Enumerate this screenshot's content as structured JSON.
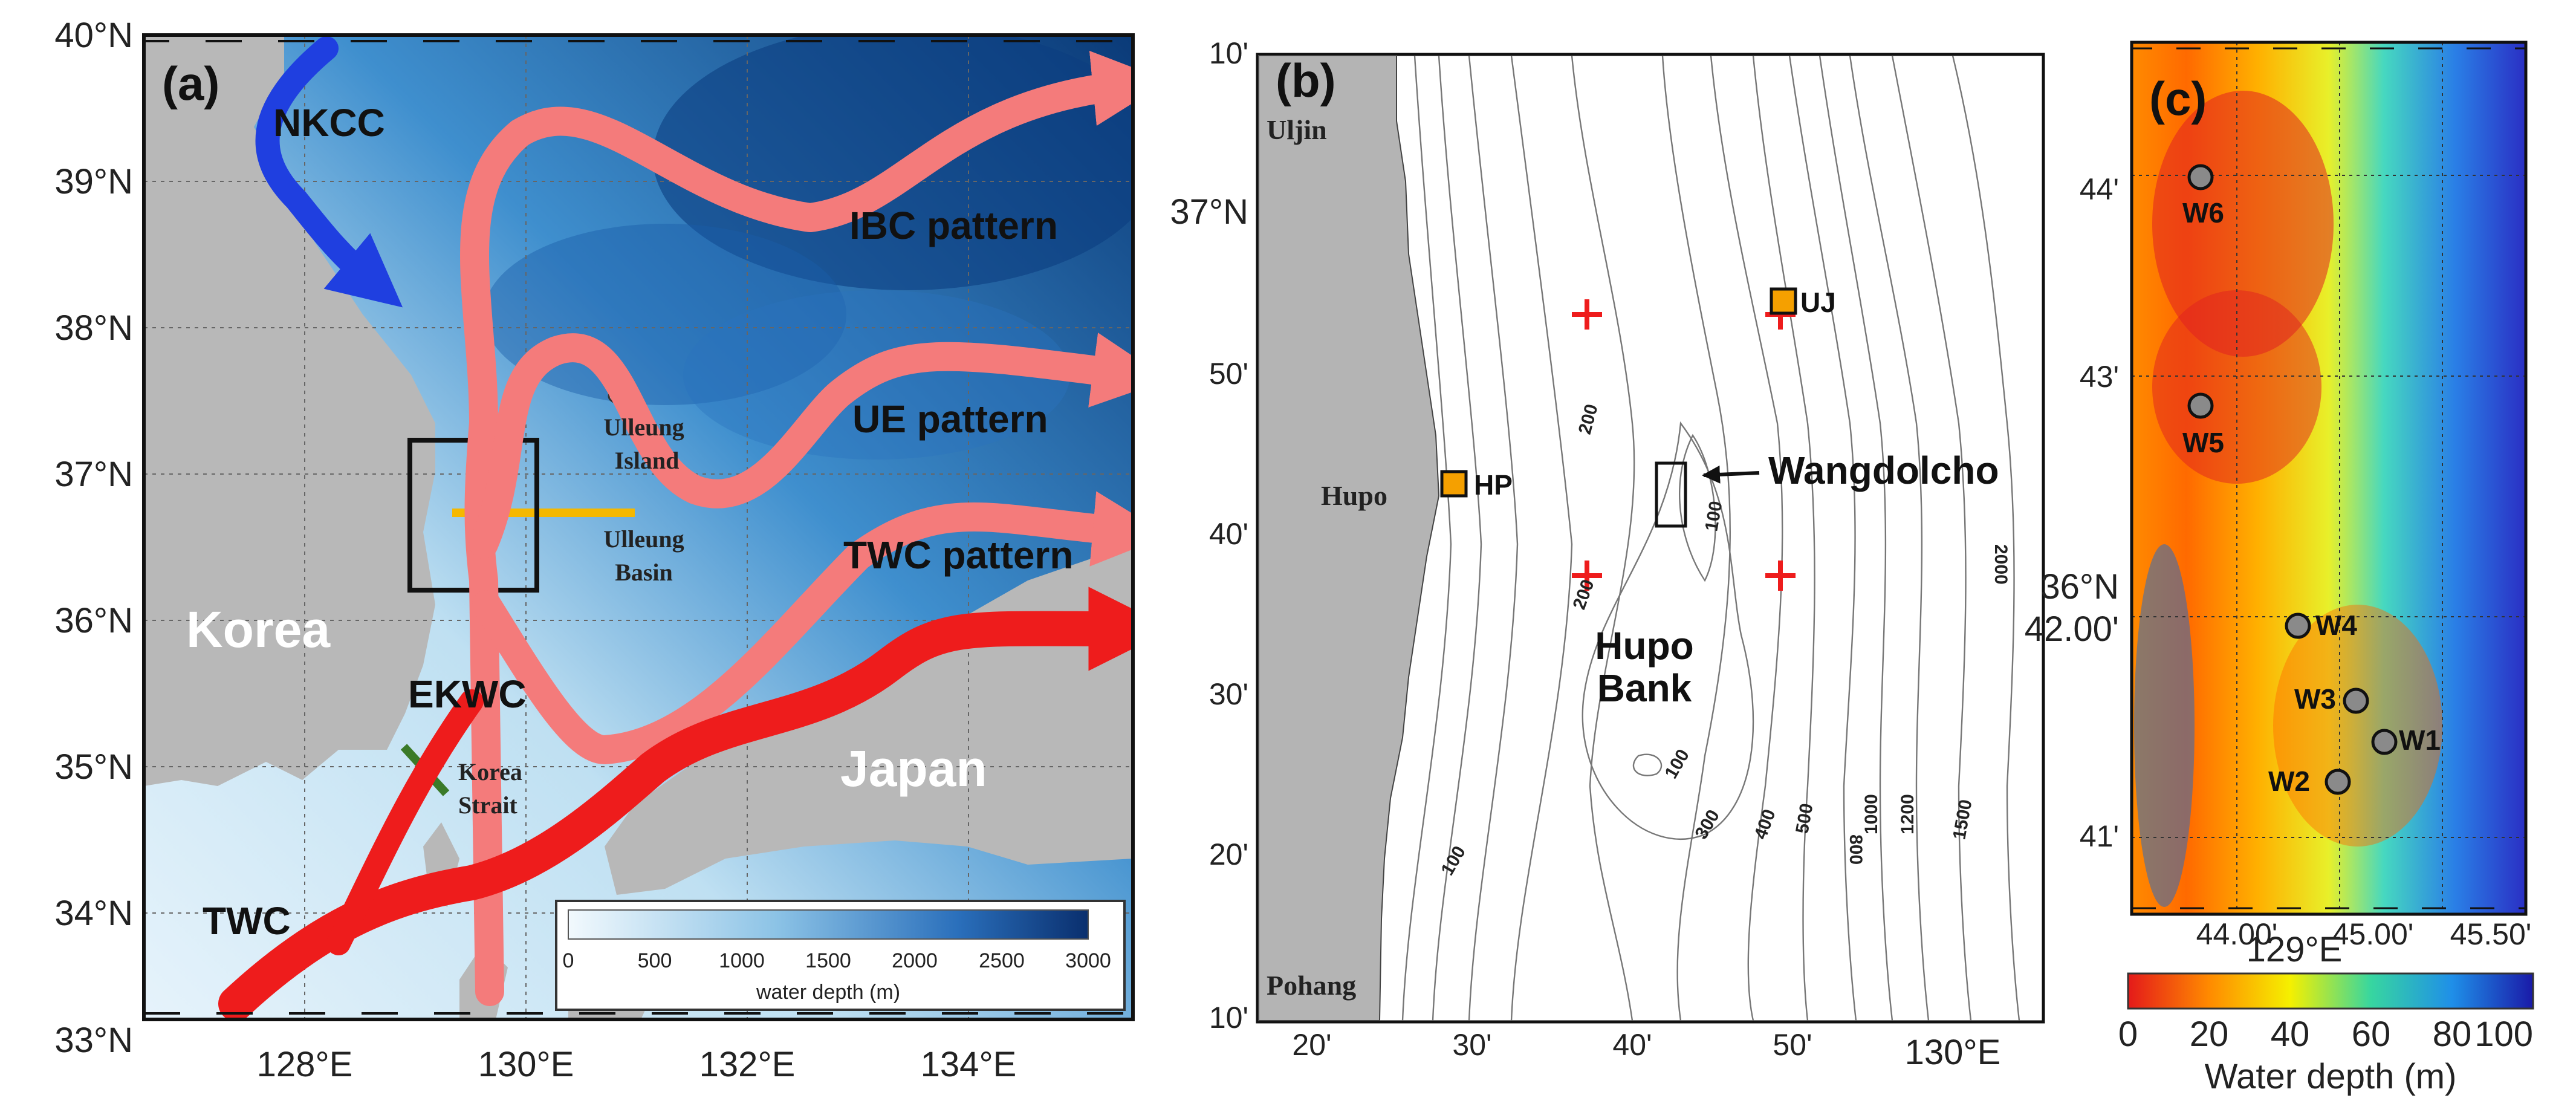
{
  "panel_a": {
    "label": "(a)",
    "lat_ticks": [
      "40°N",
      "39°N",
      "38°N",
      "37°N",
      "36°N",
      "35°N",
      "34°N",
      "33°N"
    ],
    "lon_ticks": [
      "128°E",
      "130°E",
      "132°E",
      "134°E"
    ],
    "currents": {
      "nkcc": "NKCC",
      "ibc": "IBC pattern",
      "ue": "UE pattern",
      "twc_pattern": "TWC pattern",
      "ekwc": "EKWC",
      "twc": "TWC"
    },
    "places": {
      "korea": "Korea",
      "japan": "Japan",
      "ulleung_island_1": "Ulleung",
      "ulleung_island_2": "Island",
      "ulleung_basin_1": "Ulleung",
      "ulleung_basin_2": "Basin",
      "korea_strait_1": "Korea",
      "korea_strait_2": "Strait"
    },
    "colorbar": {
      "ticks": [
        "0",
        "500",
        "1000",
        "1500",
        "2000",
        "2500",
        "3000"
      ],
      "label": "water depth (m)",
      "colors": [
        "#e8f4fb",
        "#0a3a78"
      ]
    },
    "colors": {
      "pattern": "#f47b7b",
      "twc": "#ee1c1c",
      "nkcc": "#1f3fe0",
      "land": "#b8b8b8",
      "section": "#f5b800",
      "strait": "#3a7a28"
    }
  },
  "panel_b": {
    "label": "(b)",
    "lat_ticks": [
      "10'",
      "37°N",
      "50'",
      "40'",
      "30'",
      "20'",
      "10'"
    ],
    "lon_ticks": [
      "20'",
      "30'",
      "40'",
      "50'",
      "130°E"
    ],
    "places": {
      "uljin": "Uljin",
      "hupo": "Hupo",
      "pohang": "Pohang",
      "hupo_bank_1": "Hupo",
      "hupo_bank_2": "Bank",
      "wangdolcho": "Wangdolcho"
    },
    "stations": {
      "hp": "HP",
      "uj": "UJ"
    },
    "contour_labels": [
      "100",
      "200",
      "200",
      "100",
      "100",
      "300",
      "400",
      "500",
      "800",
      "1000",
      "1200",
      "1500",
      "2000"
    ],
    "colors": {
      "land": "#b4b4b4",
      "station": "#f5a000",
      "cross": "#ee1c1c"
    }
  },
  "panel_c": {
    "label": "(c)",
    "lat_ticks": [
      "44'",
      "43'",
      "36°N",
      "42.00'",
      "41'"
    ],
    "lon_ticks": [
      "44.00'",
      "129°E",
      "45.00'",
      "45.50'"
    ],
    "stations": [
      {
        "name": "W6"
      },
      {
        "name": "W5"
      },
      {
        "name": "W4"
      },
      {
        "name": "W3"
      },
      {
        "name": "W1"
      },
      {
        "name": "W2"
      }
    ],
    "colorbar": {
      "ticks": [
        "0",
        "20",
        "40",
        "60",
        "80",
        "100"
      ],
      "label": "Water depth (m)"
    }
  }
}
